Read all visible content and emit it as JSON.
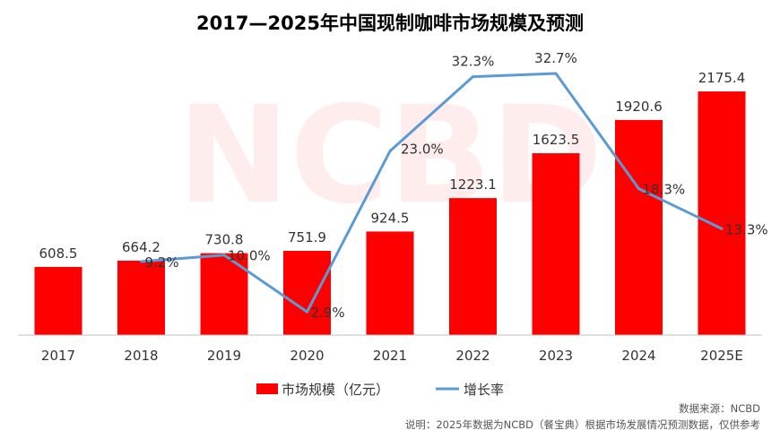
{
  "chart_data": {
    "type": "bar+line",
    "title": "2017—2025年中国现制咖啡市场规模及预测",
    "categories": [
      "2017",
      "2018",
      "2019",
      "2020",
      "2021",
      "2022",
      "2023",
      "2024",
      "2025E"
    ],
    "series": [
      {
        "name": "市场规模（亿元）",
        "type": "bar",
        "color": "#FF0000",
        "axis": "left",
        "values": [
          608.5,
          664.2,
          730.8,
          751.9,
          924.5,
          1223.1,
          1623.5,
          1920.6,
          2175.4
        ],
        "labels": [
          "608.5",
          "664.2",
          "730.8",
          "751.9",
          "924.5",
          "1223.1",
          "1623.5",
          "1920.6",
          "2175.4"
        ]
      },
      {
        "name": "增长率",
        "type": "line",
        "color": "#5B9BD5",
        "axis": "right",
        "values": [
          null,
          9.2,
          10.0,
          2.9,
          23.0,
          32.3,
          32.7,
          18.3,
          13.3
        ],
        "labels": [
          "",
          "9.2%",
          "10.0%",
          "2.9%",
          "23.0%",
          "32.3%",
          "32.7%",
          "18.3%",
          "13.3%"
        ]
      }
    ],
    "ylim_left": [
      0,
      2800
    ],
    "ylim_right": [
      0,
      39.2
    ],
    "grid": false,
    "legend_position": "bottom",
    "watermark": "NCBD 餐宝典 New Catering Big Data",
    "source": "数据来源：NCBD",
    "note": "说明：2025年数据为NCBD（餐宝典）根据市场发展情况预测数据，仅供参考"
  }
}
